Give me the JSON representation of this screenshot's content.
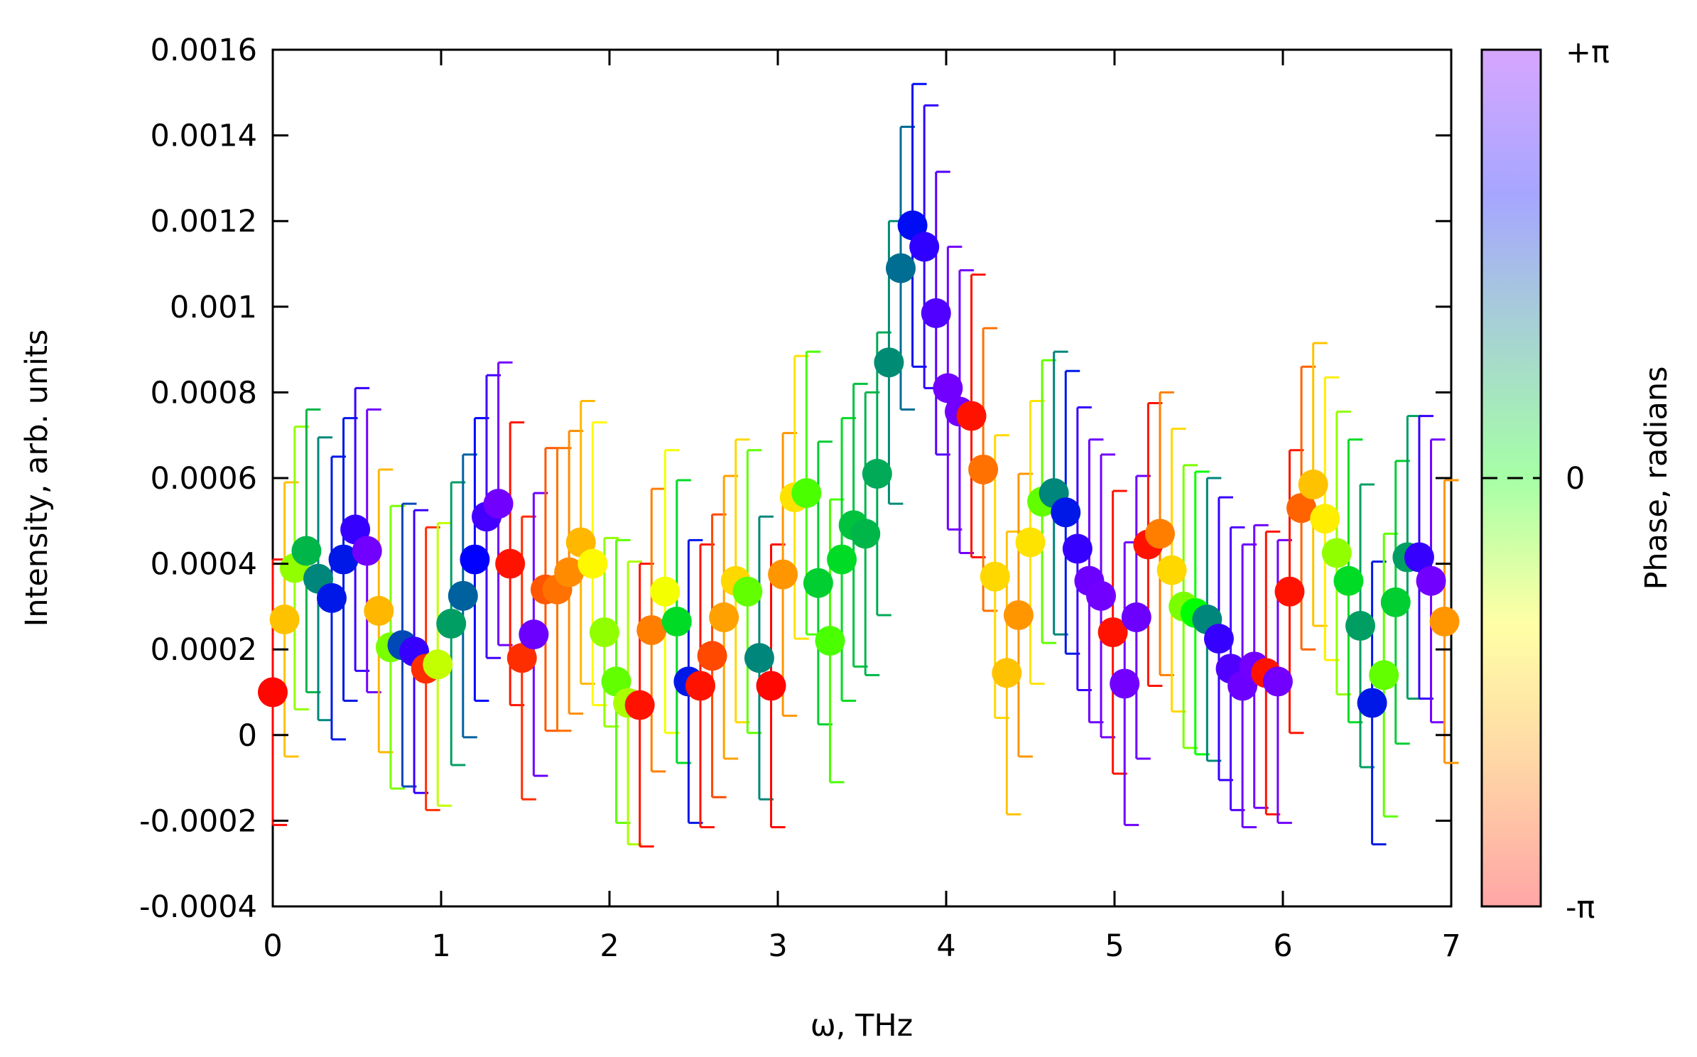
{
  "chart_data": {
    "type": "scatter",
    "xlabel": "ω, THz",
    "ylabel": "Intensity, arb. units",
    "xlim": [
      0,
      7
    ],
    "ylim": [
      -0.0004,
      0.0016
    ],
    "xticks": [
      "0",
      "1",
      "2",
      "3",
      "4",
      "5",
      "6",
      "7"
    ],
    "yticks": [
      "0.0016",
      "0.0014",
      "0.0012",
      "0.001",
      "0.0008",
      "0.0006",
      "0.0004",
      "0.0002",
      "0",
      "-0.0002",
      "-0.0004"
    ],
    "colorbar": {
      "label": "Phase, radians",
      "range": [
        -3.14159,
        3.14159
      ],
      "tick_labels": [
        "+π",
        "0",
        "-π"
      ],
      "colormap": [
        "#ff0000",
        "#ff8c00",
        "#ffff00",
        "#00ff00",
        "#008080",
        "#0000ff",
        "#8b00ff"
      ]
    },
    "points": [
      {
        "x": 0.0,
        "y": 0.0001,
        "err": 0.00031,
        "phase": -3.1
      },
      {
        "x": 0.07,
        "y": 0.00027,
        "err": 0.00032,
        "phase": -1.6
      },
      {
        "x": 0.13,
        "y": 0.00039,
        "err": 0.00033,
        "phase": -0.6
      },
      {
        "x": 0.2,
        "y": 0.00043,
        "err": 0.00033,
        "phase": 0.6
      },
      {
        "x": 0.27,
        "y": 0.000365,
        "err": 0.00033,
        "phase": 1.0
      },
      {
        "x": 0.35,
        "y": 0.00032,
        "err": 0.00033,
        "phase": 1.9
      },
      {
        "x": 0.42,
        "y": 0.00041,
        "err": 0.00033,
        "phase": 1.9
      },
      {
        "x": 0.49,
        "y": 0.00048,
        "err": 0.00033,
        "phase": 2.5
      },
      {
        "x": 0.56,
        "y": 0.00043,
        "err": 0.00033,
        "phase": 2.95
      },
      {
        "x": 0.63,
        "y": 0.00029,
        "err": 0.00033,
        "phase": -1.7
      },
      {
        "x": 0.7,
        "y": 0.000205,
        "err": 0.00033,
        "phase": -0.5
      },
      {
        "x": 0.77,
        "y": 0.00021,
        "err": 0.00033,
        "phase": 1.5
      },
      {
        "x": 0.84,
        "y": 0.000195,
        "err": 0.00033,
        "phase": 2.5
      },
      {
        "x": 0.91,
        "y": 0.000155,
        "err": 0.00033,
        "phase": -2.8
      },
      {
        "x": 0.98,
        "y": 0.000165,
        "err": 0.00033,
        "phase": -0.8
      },
      {
        "x": 1.06,
        "y": 0.00026,
        "err": 0.00033,
        "phase": 0.8
      },
      {
        "x": 1.13,
        "y": 0.000325,
        "err": 0.00033,
        "phase": 1.3
      },
      {
        "x": 1.2,
        "y": 0.00041,
        "err": 0.00033,
        "phase": 2.1
      },
      {
        "x": 1.27,
        "y": 0.00051,
        "err": 0.00033,
        "phase": 2.6
      },
      {
        "x": 1.34,
        "y": 0.00054,
        "err": 0.00033,
        "phase": 2.95
      },
      {
        "x": 1.41,
        "y": 0.0004,
        "err": 0.00033,
        "phase": -3.0
      },
      {
        "x": 1.48,
        "y": 0.00018,
        "err": 0.00033,
        "phase": -2.8
      },
      {
        "x": 1.55,
        "y": 0.000235,
        "err": 0.00033,
        "phase": 2.9
      },
      {
        "x": 1.62,
        "y": 0.00034,
        "err": 0.00033,
        "phase": -2.5
      },
      {
        "x": 1.69,
        "y": 0.00034,
        "err": 0.00033,
        "phase": -2.3
      },
      {
        "x": 1.76,
        "y": 0.00038,
        "err": 0.00033,
        "phase": -2.1
      },
      {
        "x": 1.83,
        "y": 0.00045,
        "err": 0.00033,
        "phase": -1.7
      },
      {
        "x": 1.9,
        "y": 0.0004,
        "err": 0.00033,
        "phase": -1.1
      },
      {
        "x": 1.97,
        "y": 0.00024,
        "err": 0.00022,
        "phase": -0.6
      },
      {
        "x": 2.04,
        "y": 0.000125,
        "err": 0.00033,
        "phase": -0.4
      },
      {
        "x": 2.11,
        "y": 7.5e-05,
        "err": 0.00033,
        "phase": -0.7
      },
      {
        "x": 2.18,
        "y": 7e-05,
        "err": 0.00033,
        "phase": -3.0
      },
      {
        "x": 2.25,
        "y": 0.000245,
        "err": 0.00033,
        "phase": -2.2
      },
      {
        "x": 2.33,
        "y": 0.000335,
        "err": 0.00033,
        "phase": -1.0
      },
      {
        "x": 2.4,
        "y": 0.000265,
        "err": 0.00033,
        "phase": 0.3
      },
      {
        "x": 2.47,
        "y": 0.000125,
        "err": 0.00033,
        "phase": 1.9
      },
      {
        "x": 2.54,
        "y": 0.000115,
        "err": 0.00033,
        "phase": -3.0
      },
      {
        "x": 2.61,
        "y": 0.000185,
        "err": 0.00033,
        "phase": -2.6
      },
      {
        "x": 2.68,
        "y": 0.000275,
        "err": 0.00033,
        "phase": -1.9
      },
      {
        "x": 2.75,
        "y": 0.00036,
        "err": 0.00033,
        "phase": -1.4
      },
      {
        "x": 2.82,
        "y": 0.000335,
        "err": 0.00033,
        "phase": -0.4
      },
      {
        "x": 2.89,
        "y": 0.00018,
        "err": 0.00033,
        "phase": 1.0
      },
      {
        "x": 2.96,
        "y": 0.000115,
        "err": 0.00033,
        "phase": -3.1
      },
      {
        "x": 3.03,
        "y": 0.000375,
        "err": 0.00033,
        "phase": -2.0
      },
      {
        "x": 3.1,
        "y": 0.000555,
        "err": 0.00033,
        "phase": -1.3
      },
      {
        "x": 3.17,
        "y": 0.000565,
        "err": 0.00033,
        "phase": -0.3
      },
      {
        "x": 3.24,
        "y": 0.000355,
        "err": 0.00033,
        "phase": 0.4
      },
      {
        "x": 3.31,
        "y": 0.00022,
        "err": 0.00033,
        "phase": -0.3
      },
      {
        "x": 3.38,
        "y": 0.00041,
        "err": 0.00033,
        "phase": 0.3
      },
      {
        "x": 3.45,
        "y": 0.00049,
        "err": 0.00033,
        "phase": 0.5
      },
      {
        "x": 3.52,
        "y": 0.00047,
        "err": 0.00033,
        "phase": 0.6
      },
      {
        "x": 3.59,
        "y": 0.00061,
        "err": 0.00033,
        "phase": 0.7
      },
      {
        "x": 3.66,
        "y": 0.00087,
        "err": 0.00033,
        "phase": 0.95
      },
      {
        "x": 3.73,
        "y": 0.00109,
        "err": 0.00033,
        "phase": 1.2
      },
      {
        "x": 3.8,
        "y": 0.00119,
        "err": 0.00033,
        "phase": 2.0
      },
      {
        "x": 3.87,
        "y": 0.00114,
        "err": 0.00033,
        "phase": 2.45
      },
      {
        "x": 3.94,
        "y": 0.000985,
        "err": 0.00033,
        "phase": 2.7
      },
      {
        "x": 4.01,
        "y": 0.00081,
        "err": 0.00033,
        "phase": 2.95
      },
      {
        "x": 4.08,
        "y": 0.000755,
        "err": 0.00033,
        "phase": 2.95
      },
      {
        "x": 4.15,
        "y": 0.000745,
        "err": 0.00033,
        "phase": -3.0
      },
      {
        "x": 4.22,
        "y": 0.00062,
        "err": 0.00033,
        "phase": -2.3
      },
      {
        "x": 4.29,
        "y": 0.00037,
        "err": 0.00033,
        "phase": -1.4
      },
      {
        "x": 4.36,
        "y": 0.000145,
        "err": 0.00033,
        "phase": -1.6
      },
      {
        "x": 4.43,
        "y": 0.00028,
        "err": 0.00033,
        "phase": -2.0
      },
      {
        "x": 4.5,
        "y": 0.00045,
        "err": 0.00033,
        "phase": -1.3
      },
      {
        "x": 4.57,
        "y": 0.000545,
        "err": 0.00033,
        "phase": -0.4
      },
      {
        "x": 4.64,
        "y": 0.000565,
        "err": 0.00033,
        "phase": 1.0
      },
      {
        "x": 4.71,
        "y": 0.00052,
        "err": 0.00033,
        "phase": 1.9
      },
      {
        "x": 4.78,
        "y": 0.000435,
        "err": 0.00033,
        "phase": 2.5
      },
      {
        "x": 4.85,
        "y": 0.00036,
        "err": 0.00033,
        "phase": 2.9
      },
      {
        "x": 4.92,
        "y": 0.000325,
        "err": 0.00033,
        "phase": 2.95
      },
      {
        "x": 4.99,
        "y": 0.00024,
        "err": 0.00033,
        "phase": -3.0
      },
      {
        "x": 5.06,
        "y": 0.00012,
        "err": 0.00033,
        "phase": 2.95
      },
      {
        "x": 5.13,
        "y": 0.000275,
        "err": 0.00033,
        "phase": 2.9
      },
      {
        "x": 5.2,
        "y": 0.000445,
        "err": 0.00033,
        "phase": -3.0
      },
      {
        "x": 5.27,
        "y": 0.00047,
        "err": 0.00033,
        "phase": -2.2
      },
      {
        "x": 5.34,
        "y": 0.000385,
        "err": 0.00033,
        "phase": -1.4
      },
      {
        "x": 5.41,
        "y": 0.0003,
        "err": 0.00033,
        "phase": -0.5
      },
      {
        "x": 5.48,
        "y": 0.000285,
        "err": 0.00033,
        "phase": 0.0
      },
      {
        "x": 5.55,
        "y": 0.00027,
        "err": 0.00033,
        "phase": 1.0
      },
      {
        "x": 5.62,
        "y": 0.000225,
        "err": 0.00033,
        "phase": 2.5
      },
      {
        "x": 5.69,
        "y": 0.000155,
        "err": 0.00033,
        "phase": 2.7
      },
      {
        "x": 5.76,
        "y": 0.000115,
        "err": 0.00033,
        "phase": 2.9
      },
      {
        "x": 5.83,
        "y": 0.00016,
        "err": 0.00033,
        "phase": 2.95
      },
      {
        "x": 5.9,
        "y": 0.000145,
        "err": 0.00033,
        "phase": -3.0
      },
      {
        "x": 5.97,
        "y": 0.000125,
        "err": 0.00033,
        "phase": 2.95
      },
      {
        "x": 6.04,
        "y": 0.000335,
        "err": 0.00033,
        "phase": -3.0
      },
      {
        "x": 6.11,
        "y": 0.00053,
        "err": 0.00033,
        "phase": -2.4
      },
      {
        "x": 6.18,
        "y": 0.000585,
        "err": 0.00033,
        "phase": -1.6
      },
      {
        "x": 6.25,
        "y": 0.000505,
        "err": 0.00033,
        "phase": -1.2
      },
      {
        "x": 6.32,
        "y": 0.000425,
        "err": 0.00033,
        "phase": -0.6
      },
      {
        "x": 6.39,
        "y": 0.00036,
        "err": 0.00033,
        "phase": 0.3
      },
      {
        "x": 6.46,
        "y": 0.000255,
        "err": 0.00033,
        "phase": 0.8
      },
      {
        "x": 6.53,
        "y": 7.5e-05,
        "err": 0.00033,
        "phase": 1.9
      },
      {
        "x": 6.6,
        "y": 0.00014,
        "err": 0.00033,
        "phase": -0.4
      },
      {
        "x": 6.67,
        "y": 0.00031,
        "err": 0.00033,
        "phase": 0.4
      },
      {
        "x": 6.74,
        "y": 0.000415,
        "err": 0.00033,
        "phase": 0.8
      },
      {
        "x": 6.81,
        "y": 0.000415,
        "err": 0.00033,
        "phase": 2.5
      },
      {
        "x": 6.88,
        "y": 0.00036,
        "err": 0.00033,
        "phase": 2.95
      },
      {
        "x": 6.96,
        "y": 0.000265,
        "err": 0.00033,
        "phase": -2.0
      }
    ]
  }
}
